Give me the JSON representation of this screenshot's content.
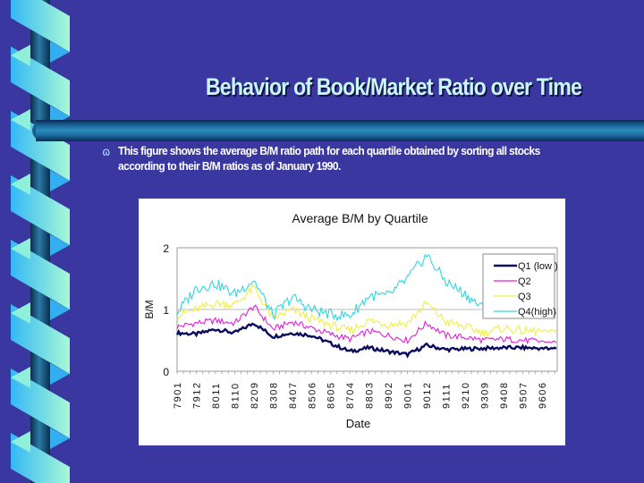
{
  "slide": {
    "title": "Behavior of Book/Market Ratio over Time",
    "bullet_icon": "fleuron-bullet-icon",
    "bullet_glyph": "ɷ",
    "bullet_text_line1": "This figure shows the average B/M ratio path for each quartile obtained by sorting all stocks",
    "bullet_text_line2": "according to their B/M ratios as of January 1990.",
    "colors": {
      "background": "#3a37a0",
      "title": "#c8f6ff",
      "bar": "#1d6fa0",
      "ribbon_light": "#9ff5d8",
      "ribbon_blue": "#35b8f5",
      "pole": "#123d5c"
    }
  },
  "chart_data": {
    "type": "line",
    "title": "Average B/M by Quartile",
    "xlabel": "Date",
    "ylabel": "B/M",
    "ylim": [
      0,
      2
    ],
    "yticks": [
      0,
      1,
      2
    ],
    "grid": "horizontal at 1",
    "legend_position": "upper right inside",
    "categories": [
      "7901",
      "7912",
      "8011",
      "8110",
      "8209",
      "8308",
      "8407",
      "8506",
      "8605",
      "8704",
      "8803",
      "8902",
      "9001",
      "9012",
      "9111",
      "9210",
      "9309",
      "9408",
      "9507",
      "9606"
    ],
    "series": [
      {
        "name": "Q1 (low )",
        "color": "#0b0b5e",
        "values": [
          0.62,
          0.6,
          0.68,
          0.62,
          0.78,
          0.56,
          0.62,
          0.58,
          0.45,
          0.32,
          0.38,
          0.32,
          0.27,
          0.42,
          0.35,
          0.36,
          0.37,
          0.38,
          0.38,
          0.37
        ]
      },
      {
        "name": "Q2",
        "color": "#e020d8",
        "values": [
          0.72,
          0.78,
          0.82,
          0.78,
          1.05,
          0.68,
          0.8,
          0.7,
          0.6,
          0.52,
          0.65,
          0.58,
          0.5,
          0.78,
          0.58,
          0.55,
          0.5,
          0.52,
          0.5,
          0.48
        ]
      },
      {
        "name": "Q3",
        "color": "#f0f040",
        "values": [
          0.9,
          1.0,
          1.1,
          1.08,
          1.35,
          0.85,
          1.0,
          0.85,
          0.75,
          0.65,
          0.82,
          0.76,
          0.78,
          1.1,
          0.8,
          0.72,
          0.62,
          0.7,
          0.65,
          0.65
        ]
      },
      {
        "name": "Q4(high)",
        "color": "#30d8e0",
        "values": [
          0.95,
          1.35,
          1.42,
          1.25,
          1.48,
          0.9,
          1.2,
          1.0,
          0.92,
          0.9,
          1.22,
          1.22,
          1.5,
          1.88,
          1.45,
          1.25,
          1.0,
          0.95,
          0.95,
          0.95
        ]
      }
    ]
  }
}
